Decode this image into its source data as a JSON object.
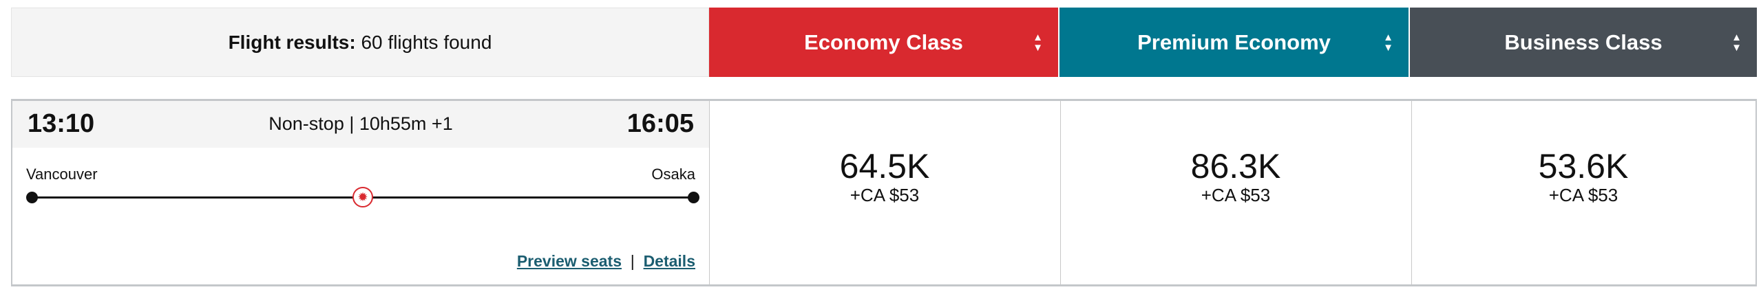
{
  "header": {
    "title_bold": "Flight results:",
    "title_rest": "60 flights found"
  },
  "cabins": [
    {
      "label": "Economy Class",
      "color": "#d9292f",
      "sort_icon": "sort-icon"
    },
    {
      "label": "Premium Economy",
      "color": "#00778f",
      "sort_icon": "sort-icon"
    },
    {
      "label": "Business Class",
      "color": "#484f56",
      "sort_icon": "sort-icon"
    }
  ],
  "flight": {
    "depart_time": "13:10",
    "arrive_time": "16:05",
    "summary": "Non-stop | 10h55m +1",
    "origin": "Vancouver",
    "destination": "Osaka",
    "airline_icon": "maple-leaf-icon",
    "preview_seats": "Preview seats",
    "separator": "|",
    "details": "Details",
    "fares": [
      {
        "points": "64.5K",
        "tax": "+CA $53"
      },
      {
        "points": "86.3K",
        "tax": "+CA $53"
      },
      {
        "points": "53.6K",
        "tax": "+CA $53"
      }
    ]
  }
}
